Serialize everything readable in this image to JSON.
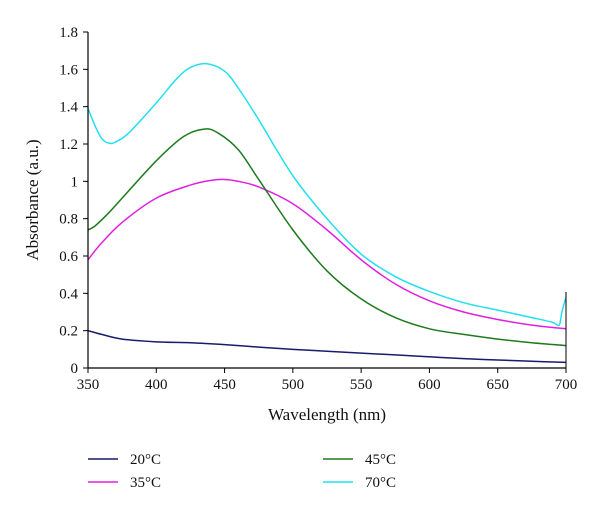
{
  "chart_data": {
    "type": "line",
    "xlabel": "Wavelength (nm)",
    "ylabel": "Absorbance (a.u.)",
    "xlim": [
      350,
      700
    ],
    "ylim": [
      0,
      1.8
    ],
    "xticks": [
      "350",
      "400",
      "450",
      "500",
      "550",
      "600",
      "650",
      "700"
    ],
    "yticks": [
      "0",
      "0.2",
      "0.4",
      "0.6",
      "0.8",
      "1",
      "1.2",
      "1.4",
      "1.6",
      "1.8"
    ],
    "grid": false,
    "legend_position": "bottom",
    "series": [
      {
        "name": "20°C",
        "color": "#1a1a6e",
        "x": [
          350,
          360,
          375,
          400,
          425,
          450,
          475,
          500,
          525,
          550,
          575,
          600,
          625,
          650,
          675,
          700
        ],
        "y": [
          0.2,
          0.18,
          0.155,
          0.14,
          0.135,
          0.125,
          0.112,
          0.1,
          0.09,
          0.08,
          0.07,
          0.06,
          0.05,
          0.043,
          0.036,
          0.03
        ]
      },
      {
        "name": "35°C",
        "color": "#e020e0",
        "x": [
          350,
          360,
          375,
          400,
          425,
          440,
          450,
          460,
          475,
          500,
          525,
          550,
          575,
          600,
          625,
          650,
          675,
          700
        ],
        "y": [
          0.58,
          0.67,
          0.78,
          0.91,
          0.98,
          1.005,
          1.01,
          1.0,
          0.97,
          0.88,
          0.74,
          0.58,
          0.45,
          0.36,
          0.3,
          0.26,
          0.23,
          0.21
        ]
      },
      {
        "name": "45°C",
        "color": "#1e7a1e",
        "x": [
          350,
          355,
          365,
          375,
          400,
          420,
          435,
          445,
          460,
          475,
          500,
          525,
          550,
          575,
          600,
          625,
          650,
          675,
          700
        ],
        "y": [
          0.74,
          0.76,
          0.83,
          0.91,
          1.11,
          1.24,
          1.28,
          1.26,
          1.17,
          1.01,
          0.74,
          0.52,
          0.37,
          0.27,
          0.21,
          0.18,
          0.155,
          0.135,
          0.12
        ]
      },
      {
        "name": "70°C",
        "color": "#22e0f0",
        "x": [
          350,
          355,
          360,
          365,
          370,
          380,
          400,
          415,
          425,
          437,
          450,
          460,
          475,
          500,
          525,
          550,
          575,
          600,
          625,
          650,
          675,
          690,
          695,
          697,
          700
        ],
        "y": [
          1.39,
          1.3,
          1.23,
          1.205,
          1.21,
          1.26,
          1.42,
          1.55,
          1.61,
          1.63,
          1.59,
          1.5,
          1.33,
          1.03,
          0.8,
          0.61,
          0.49,
          0.41,
          0.35,
          0.31,
          0.27,
          0.245,
          0.23,
          0.3,
          0.38
        ]
      }
    ]
  }
}
